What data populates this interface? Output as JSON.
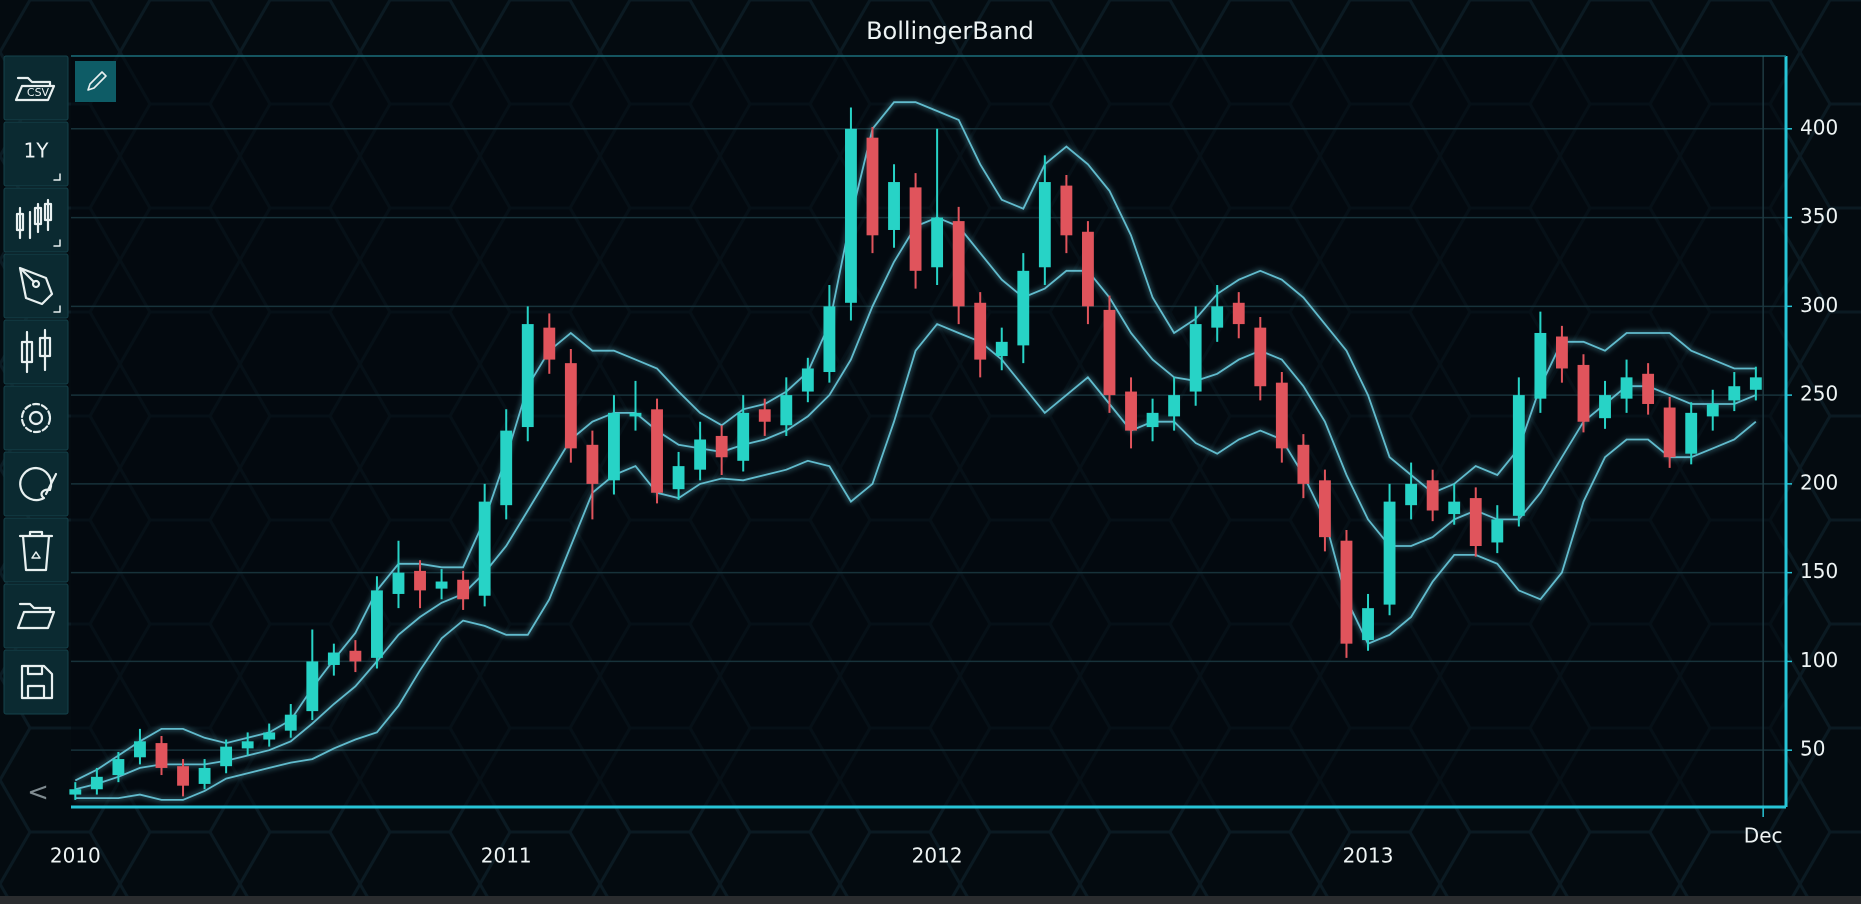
{
  "chart_data": {
    "type": "candlestick",
    "title": "BollingerBand",
    "x": [
      2010,
      2010.05,
      2010.1,
      2010.15,
      2010.2,
      2010.25,
      2010.3,
      2010.35,
      2010.4,
      2010.45,
      2010.5,
      2010.55,
      2010.6,
      2010.65,
      2010.7,
      2010.75,
      2010.8,
      2010.85,
      2010.9,
      2010.95,
      2011,
      2011.05,
      2011.1,
      2011.15,
      2011.2,
      2011.25,
      2011.3,
      2011.35,
      2011.4,
      2011.45,
      2011.5,
      2011.55,
      2011.6,
      2011.65,
      2011.7,
      2011.75,
      2011.8,
      2011.85,
      2011.9,
      2011.95,
      2012,
      2012.05,
      2012.1,
      2012.15,
      2012.2,
      2012.25,
      2012.3,
      2012.35,
      2012.4,
      2012.45,
      2012.5,
      2012.55,
      2012.6,
      2012.65,
      2012.7,
      2012.75,
      2012.8,
      2012.85,
      2012.9,
      2012.95,
      2013,
      2013.05,
      2013.1,
      2013.15,
      2013.2,
      2013.25,
      2013.3,
      2013.35,
      2013.4,
      2013.45,
      2013.5,
      2013.55,
      2013.6,
      2013.65,
      2013.7,
      2013.75,
      2013.8,
      2013.85,
      2013.9
    ],
    "candles": {
      "open": [
        25,
        28,
        36,
        46,
        54,
        41,
        31,
        41,
        51,
        56,
        61,
        72,
        98,
        106,
        102,
        138,
        151,
        141,
        146,
        137,
        188,
        232,
        288,
        268,
        222,
        202,
        238,
        242,
        197,
        208,
        227,
        213,
        242,
        233,
        252,
        263,
        302,
        395,
        343,
        367,
        322,
        348,
        302,
        272,
        278,
        322,
        368,
        342,
        298,
        252,
        232,
        238,
        252,
        288,
        302,
        288,
        257,
        222,
        202,
        168,
        112,
        132,
        188,
        202,
        183,
        192,
        167,
        182,
        248,
        283,
        267,
        237,
        248,
        262,
        243,
        217,
        238,
        247,
        253
      ],
      "high": [
        32,
        40,
        49,
        62,
        58,
        45,
        45,
        56,
        60,
        65,
        76,
        118,
        110,
        112,
        148,
        168,
        157,
        152,
        151,
        200,
        242,
        300,
        296,
        276,
        230,
        250,
        258,
        248,
        218,
        235,
        233,
        250,
        248,
        260,
        271,
        312,
        412,
        401,
        380,
        375,
        400,
        356,
        308,
        288,
        330,
        385,
        374,
        348,
        306,
        260,
        248,
        260,
        300,
        312,
        308,
        294,
        263,
        228,
        208,
        174,
        138,
        200,
        212,
        208,
        200,
        198,
        188,
        260,
        297,
        289,
        273,
        258,
        270,
        268,
        249,
        246,
        253,
        263,
        266
      ],
      "low": [
        22,
        25,
        32,
        42,
        36,
        24,
        28,
        37,
        47,
        52,
        57,
        67,
        92,
        94,
        96,
        130,
        130,
        135,
        129,
        131,
        180,
        224,
        262,
        212,
        180,
        194,
        230,
        189,
        191,
        202,
        205,
        207,
        227,
        227,
        246,
        257,
        292,
        330,
        333,
        310,
        312,
        290,
        260,
        264,
        268,
        312,
        330,
        290,
        240,
        220,
        224,
        230,
        244,
        280,
        282,
        247,
        212,
        192,
        162,
        102,
        106,
        126,
        180,
        179,
        177,
        159,
        161,
        176,
        240,
        257,
        229,
        231,
        240,
        239,
        209,
        211,
        230,
        241,
        247
      ],
      "close": [
        28,
        35,
        45,
        55,
        40,
        30,
        40,
        52,
        55,
        60,
        70,
        100,
        105,
        100,
        140,
        150,
        140,
        145,
        135,
        190,
        230,
        290,
        270,
        220,
        200,
        240,
        240,
        195,
        210,
        225,
        215,
        240,
        235,
        250,
        265,
        300,
        400,
        340,
        370,
        320,
        350,
        300,
        270,
        280,
        320,
        370,
        340,
        300,
        250,
        230,
        240,
        250,
        290,
        300,
        290,
        255,
        220,
        200,
        170,
        110,
        130,
        190,
        200,
        185,
        190,
        165,
        180,
        250,
        285,
        265,
        235,
        250,
        260,
        245,
        215,
        240,
        245,
        255,
        260
      ]
    },
    "bands": {
      "upper": [
        33,
        39,
        47,
        55,
        62,
        62,
        57,
        54,
        57,
        60,
        67,
        85,
        101,
        116,
        140,
        155,
        155,
        153,
        153,
        180,
        215,
        255,
        275,
        285,
        275,
        275,
        270,
        265,
        252,
        240,
        233,
        242,
        245,
        252,
        263,
        290,
        350,
        400,
        415,
        415,
        410,
        405,
        380,
        360,
        355,
        380,
        390,
        380,
        365,
        340,
        305,
        285,
        293,
        307,
        315,
        320,
        315,
        305,
        290,
        275,
        250,
        215,
        205,
        195,
        200,
        210,
        205,
        220,
        255,
        280,
        280,
        275,
        285,
        285,
        285,
        275,
        270,
        265,
        265
      ],
      "middle": [
        28,
        31,
        35,
        40,
        42,
        42,
        42,
        44,
        47,
        50,
        55,
        65,
        76,
        86,
        100,
        115,
        125,
        133,
        138,
        150,
        165,
        185,
        205,
        225,
        235,
        240,
        240,
        230,
        222,
        220,
        218,
        222,
        225,
        230,
        238,
        250,
        270,
        300,
        325,
        345,
        350,
        345,
        330,
        315,
        305,
        310,
        320,
        320,
        305,
        285,
        270,
        260,
        258,
        262,
        270,
        275,
        270,
        255,
        235,
        205,
        180,
        165,
        165,
        170,
        180,
        185,
        180,
        180,
        195,
        215,
        235,
        245,
        255,
        255,
        250,
        245,
        245,
        245,
        250
      ],
      "lower": [
        23,
        23,
        23,
        25,
        22,
        22,
        27,
        34,
        37,
        40,
        43,
        45,
        51,
        56,
        60,
        75,
        95,
        113,
        123,
        120,
        115,
        115,
        135,
        165,
        195,
        205,
        210,
        195,
        192,
        200,
        203,
        202,
        205,
        208,
        213,
        210,
        190,
        200,
        235,
        275,
        290,
        285,
        280,
        270,
        255,
        240,
        250,
        260,
        245,
        230,
        235,
        235,
        223,
        217,
        225,
        230,
        225,
        205,
        180,
        135,
        110,
        115,
        125,
        145,
        160,
        160,
        155,
        140,
        135,
        150,
        190,
        215,
        225,
        225,
        215,
        215,
        220,
        225,
        235
      ]
    },
    "up_color": "#27d3c6",
    "down_color": "#e0545c",
    "band_color": "#6fd3e6",
    "xlim": [
      2009.99,
      2013.97
    ],
    "xticks": [
      2010,
      2011,
      2012,
      2013,
      {
        "value": 2013.917,
        "label": "Dec"
      }
    ],
    "ylim": [
      18,
      441
    ],
    "yticks": [
      50,
      100,
      150,
      200,
      250,
      300,
      350,
      400
    ],
    "grid": true
  },
  "toolbar": {
    "csv": "CSV",
    "range": "1Y",
    "collapse": "<"
  }
}
